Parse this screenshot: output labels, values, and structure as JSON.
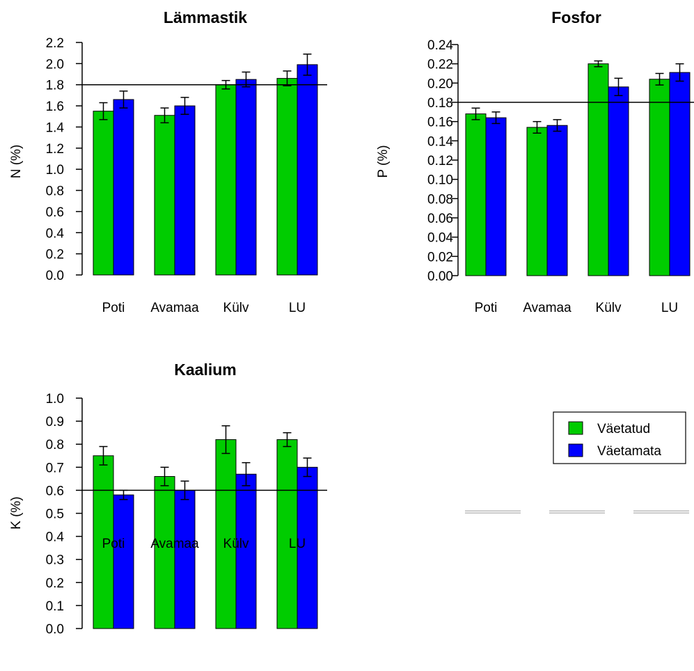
{
  "chart_data": [
    {
      "type": "bar",
      "title": "Lämmastik",
      "ylabel": "N (%)",
      "categories": [
        "Poti",
        "Avamaa",
        "Külv",
        "LU"
      ],
      "ylim": [
        0,
        2.2
      ],
      "yticks": [
        "0.0",
        "0.2",
        "0.4",
        "0.6",
        "0.8",
        "1.0",
        "1.2",
        "1.4",
        "1.6",
        "1.8",
        "2.0",
        "2.2"
      ],
      "reference_line": 1.8,
      "series": [
        {
          "name": "Väetatud",
          "color": "#00cc00",
          "values": [
            1.55,
            1.51,
            1.8,
            1.86
          ],
          "errors": [
            0.08,
            0.07,
            0.04,
            0.07
          ]
        },
        {
          "name": "Väetamata",
          "color": "#0000ff",
          "values": [
            1.66,
            1.6,
            1.85,
            1.99
          ],
          "errors": [
            0.08,
            0.08,
            0.07,
            0.1
          ]
        }
      ]
    },
    {
      "type": "bar",
      "title": "Fosfor",
      "ylabel": "P (%)",
      "categories": [
        "Poti",
        "Avamaa",
        "Külv",
        "LU"
      ],
      "ylim": [
        0,
        0.24
      ],
      "yticks": [
        "0.00",
        "0.02",
        "0.04",
        "0.06",
        "0.08",
        "0.10",
        "0.12",
        "0.14",
        "0.16",
        "0.18",
        "0.20",
        "0.22",
        "0.24"
      ],
      "reference_line": 0.18,
      "series": [
        {
          "name": "Väetatud",
          "color": "#00cc00",
          "values": [
            0.168,
            0.154,
            0.22,
            0.204
          ],
          "errors": [
            0.006,
            0.006,
            0.003,
            0.006
          ]
        },
        {
          "name": "Väetamata",
          "color": "#0000ff",
          "values": [
            0.164,
            0.156,
            0.196,
            0.211
          ],
          "errors": [
            0.006,
            0.006,
            0.009,
            0.009
          ]
        }
      ]
    },
    {
      "type": "bar",
      "title": "Kaalium",
      "ylabel": "K (%)",
      "categories": [
        "Poti",
        "Avamaa",
        "Külv",
        "LU"
      ],
      "ylim": [
        0,
        1.0
      ],
      "yticks": [
        "0.0",
        "0.1",
        "0.2",
        "0.3",
        "0.4",
        "0.5",
        "0.6",
        "0.7",
        "0.8",
        "0.9",
        "1.0"
      ],
      "reference_line": 0.6,
      "series": [
        {
          "name": "Väetatud",
          "color": "#00cc00",
          "values": [
            0.75,
            0.66,
            0.82,
            0.82
          ],
          "errors": [
            0.04,
            0.04,
            0.06,
            0.03
          ]
        },
        {
          "name": "Väetamata",
          "color": "#0000ff",
          "values": [
            0.58,
            0.6,
            0.67,
            0.7
          ],
          "errors": [
            0.02,
            0.04,
            0.05,
            0.04
          ]
        }
      ]
    }
  ],
  "legend": {
    "placement": "right",
    "entries": [
      {
        "label": "Väetatud",
        "color": "#00cc00"
      },
      {
        "label": "Väetamata",
        "color": "#0000ff"
      }
    ]
  }
}
